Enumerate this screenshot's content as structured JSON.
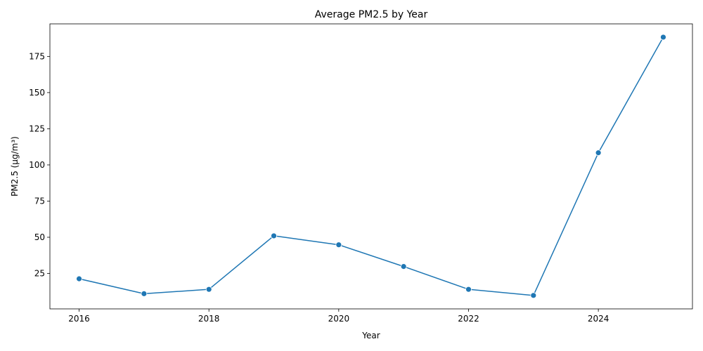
{
  "chart_data": {
    "type": "line",
    "title": "Average PM2.5 by Year",
    "xlabel": "Year",
    "ylabel": "PM2.5 (µg/m³)",
    "x": [
      2016,
      2017,
      2018,
      2019,
      2020,
      2021,
      2022,
      2023,
      2024,
      2025
    ],
    "series": [
      {
        "values": [
          21.3,
          11.0,
          14.0,
          51.0,
          44.8,
          29.8,
          14.0,
          9.8,
          108.4,
          188.3
        ],
        "color": "#1f77b4",
        "marker": "circle"
      }
    ],
    "xlim": [
      2015.55,
      2025.45
    ],
    "ylim": [
      0.5,
      197.5
    ],
    "xticks": [
      2016,
      2018,
      2020,
      2022,
      2024
    ],
    "yticks": [
      25,
      50,
      75,
      100,
      125,
      150,
      175
    ],
    "grid": false,
    "legend": "none"
  }
}
